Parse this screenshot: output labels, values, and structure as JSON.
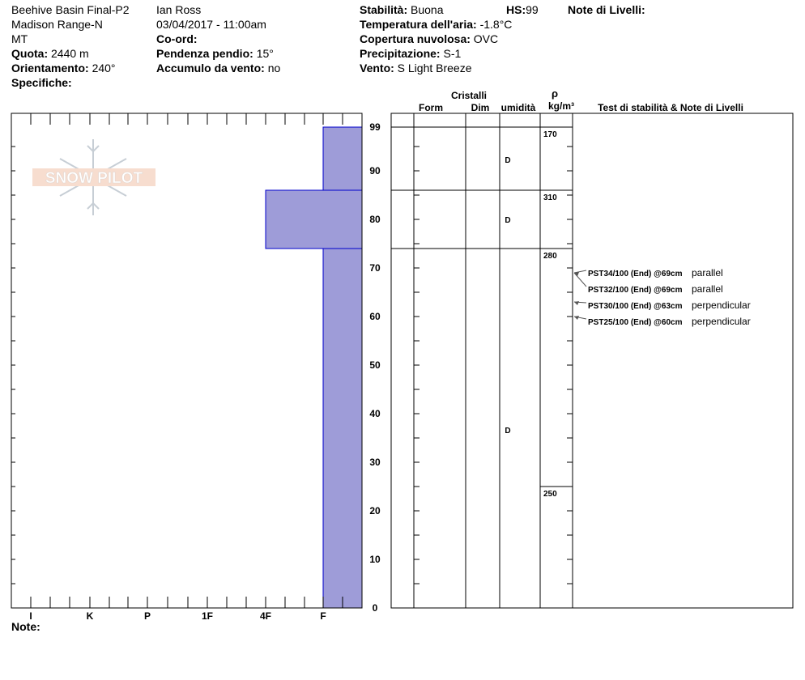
{
  "header": {
    "col1": [
      "Beehive Basin Final-P2",
      "Madison Range-N",
      "MT"
    ],
    "quota_label": "Quota:",
    "quota_value": "2440 m",
    "orient_label": "Orientamento:",
    "orient_value": "240°",
    "spec_label": "Specifiche:",
    "observer": "Ian Ross",
    "datetime": "03/04/2017 - 11:00am",
    "coord_label": "Co-ord:",
    "slope_label": "Pendenza pendio:",
    "slope_value": "15°",
    "wind_load_label": "Accumulo da vento:",
    "wind_load_value": "no",
    "stab_label": "Stabilità:",
    "stab_value": "Buona",
    "hs_label": "HS:",
    "hs_value": "99",
    "air_label": "Temperatura dell'aria:",
    "air_value": "-1.8°C",
    "cloud_label": "Copertura nuvolosa:",
    "cloud_value": "OVC",
    "precip_label": "Precipitazione:",
    "precip_value": "S-1",
    "wind_label": "Vento:",
    "wind_value": "S Light Breeze",
    "notes_title": "Note di Livelli:"
  },
  "columns": {
    "crystals": "Cristalli",
    "form": "Form",
    "dim": "Dim",
    "moisture": "umidità",
    "rho": "ρ",
    "density_unit": "kg/m³",
    "tests": "Test di stabilità & Note di Livelli"
  },
  "logo_text": "SNOW PILOT",
  "footer_note_label": "Note:",
  "chart_data": {
    "type": "bar",
    "hardness_axis": [
      "I",
      "K",
      "P",
      "1F",
      "4F",
      "F"
    ],
    "height_ticks": [
      0,
      10,
      20,
      30,
      40,
      50,
      60,
      70,
      80,
      90,
      99
    ],
    "ylim": [
      0,
      99
    ],
    "layers": [
      {
        "top": 99,
        "bottom": 86,
        "hardness": "F",
        "moisture": "D"
      },
      {
        "top": 86,
        "bottom": 74,
        "hardness": "4F",
        "moisture": "D"
      },
      {
        "top": 74,
        "bottom": 0,
        "hardness": "F",
        "moisture": "D"
      }
    ],
    "densities": [
      {
        "height": 99,
        "value": "170"
      },
      {
        "height": 86,
        "value": "310"
      },
      {
        "height": 74,
        "value": "280"
      },
      {
        "height": 25,
        "value": "250"
      }
    ],
    "tests": [
      {
        "height": 69,
        "label": "PST34/100 (End) @69cm",
        "note": "parallel"
      },
      {
        "height": 69,
        "label": "PST32/100 (End) @69cm",
        "note": "parallel"
      },
      {
        "height": 63,
        "label": "PST30/100 (End) @63cm",
        "note": "perpendicular"
      },
      {
        "height": 60,
        "label": "PST25/100 (End) @60cm",
        "note": "perpendicular"
      }
    ],
    "fill_color": "#9e9cd8",
    "stroke_color": "#0000cc"
  }
}
